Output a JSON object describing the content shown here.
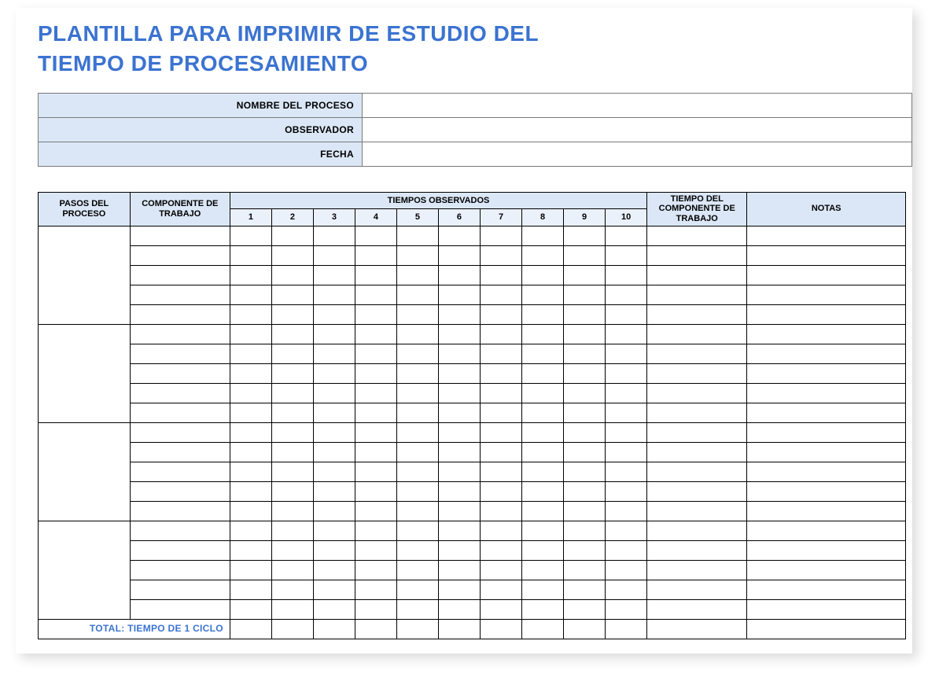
{
  "colors": {
    "accent": "#3b73d1",
    "header_fill": "#dbe7f6",
    "subheader_fill": "#eaf1fb",
    "border_info": "#7a7a7a",
    "border_data": "#000000",
    "background": "#ffffff"
  },
  "fonts": {
    "title_size_pt": 21,
    "header_size_pt": 9,
    "body_size_pt": 8
  },
  "title": "PLANTILLA PARA IMPRIMIR DE ESTUDIO DEL TIEMPO DE PROCESAMIENTO",
  "info_rows": [
    {
      "label": "NOMBRE DEL PROCESO",
      "value": ""
    },
    {
      "label": "OBSERVADOR",
      "value": ""
    },
    {
      "label": "FECHA",
      "value": ""
    }
  ],
  "data_table": {
    "columns": {
      "steps": "PASOS DEL PROCESO",
      "component": "COMPONENTE DE TRABAJO",
      "observed_header": "TIEMPOS OBSERVADOS",
      "time_cols": [
        "1",
        "2",
        "3",
        "4",
        "5",
        "6",
        "7",
        "8",
        "9",
        "10"
      ],
      "comp_time": "TIEMPO DEL COMPONENTE DE TRABAJO",
      "notes": "NOTAS"
    },
    "groups": 4,
    "rows_per_group": 5,
    "footer_label": "TOTAL: TIEMPO DE 1 CICLO"
  }
}
